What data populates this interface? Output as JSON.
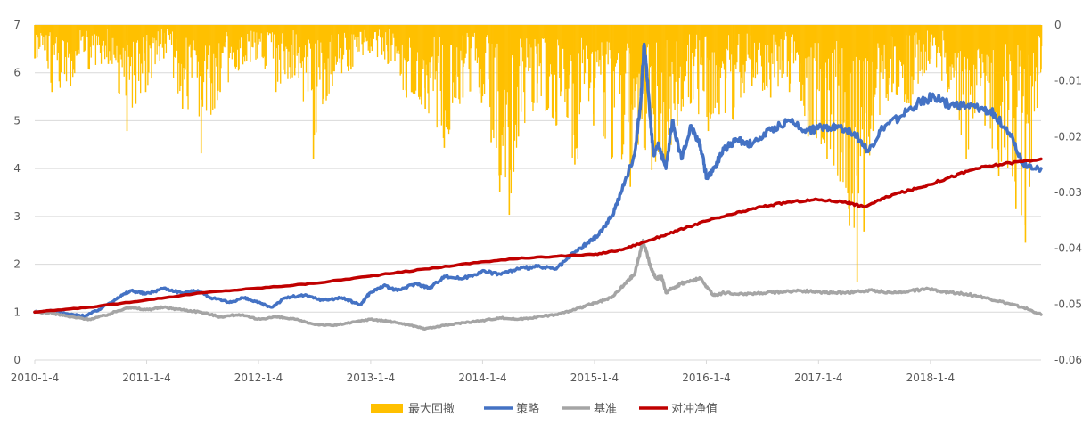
{
  "chart_data": {
    "type": "line",
    "title": "",
    "xlabel": "",
    "ylabel": "",
    "y2label": "",
    "x_ticks": [
      "2010-1-4",
      "2011-1-4",
      "2012-1-4",
      "2013-1-4",
      "2014-1-4",
      "2015-1-4",
      "2016-1-4",
      "2017-1-4",
      "2018-1-4"
    ],
    "xlim": [
      "2010-01-04",
      "2018-12-31"
    ],
    "ylim": [
      0,
      7
    ],
    "y_ticks": [
      "0",
      "1",
      "2",
      "3",
      "4",
      "5",
      "6",
      "7"
    ],
    "y2lim": [
      -0.06,
      0
    ],
    "y2_ticks": [
      "0",
      "-0.01",
      "-0.02",
      "-0.03",
      "-0.04",
      "-0.05",
      "-0.06"
    ],
    "grid": true,
    "legend_position": "bottom",
    "legend": [
      "最大回撤",
      "策略",
      "基准",
      "对冲净值"
    ],
    "series": [
      {
        "name": "最大回撤",
        "type": "bar",
        "axis": "right",
        "color": "#FFC000",
        "x": [
          "2010-01-04",
          "2010-03-01",
          "2010-05-01",
          "2010-07-01",
          "2010-09-01",
          "2010-11-01",
          "2011-01-01",
          "2011-03-01",
          "2011-05-01",
          "2011-07-01",
          "2011-09-01",
          "2011-11-01",
          "2012-01-01",
          "2012-03-01",
          "2012-05-01",
          "2012-07-01",
          "2012-09-01",
          "2012-11-01",
          "2013-01-01",
          "2013-03-01",
          "2013-05-01",
          "2013-07-01",
          "2013-09-01",
          "2013-11-01",
          "2014-01-01",
          "2014-02-01",
          "2014-03-01",
          "2014-04-01",
          "2014-05-01",
          "2014-07-01",
          "2014-09-01",
          "2014-11-01",
          "2015-01-01",
          "2015-03-01",
          "2015-05-01",
          "2015-06-15",
          "2015-07-10",
          "2015-08-25",
          "2015-10-01",
          "2015-11-15",
          "2016-01-10",
          "2016-02-15",
          "2016-04-01",
          "2016-06-01",
          "2016-08-01",
          "2016-10-01",
          "2016-12-01",
          "2017-02-01",
          "2017-03-15",
          "2017-04-15",
          "2017-05-10",
          "2017-06-01",
          "2017-07-01",
          "2017-09-01",
          "2017-11-01",
          "2018-01-01",
          "2018-03-01",
          "2018-05-01",
          "2018-07-01",
          "2018-08-15",
          "2018-10-10",
          "2018-11-10",
          "2018-12-31"
        ],
        "values": [
          -0.006,
          -0.012,
          -0.011,
          -0.008,
          -0.007,
          -0.019,
          -0.012,
          -0.006,
          -0.015,
          -0.023,
          -0.012,
          -0.008,
          -0.006,
          -0.012,
          -0.009,
          -0.024,
          -0.011,
          -0.008,
          -0.005,
          -0.007,
          -0.013,
          -0.015,
          -0.022,
          -0.013,
          -0.014,
          -0.021,
          -0.03,
          -0.034,
          -0.02,
          -0.014,
          -0.018,
          -0.025,
          -0.018,
          -0.024,
          -0.029,
          -0.022,
          -0.026,
          -0.025,
          -0.018,
          -0.014,
          -0.019,
          -0.016,
          -0.017,
          -0.011,
          -0.013,
          -0.012,
          -0.02,
          -0.024,
          -0.028,
          -0.036,
          -0.046,
          -0.037,
          -0.019,
          -0.012,
          -0.015,
          -0.007,
          -0.012,
          -0.024,
          -0.018,
          -0.027,
          -0.033,
          -0.039,
          -0.008
        ]
      },
      {
        "name": "策略",
        "type": "line",
        "axis": "left",
        "color": "#4472C4",
        "x": [
          "2010-01-04",
          "2010-03-01",
          "2010-05-01",
          "2010-06-15",
          "2010-08-01",
          "2010-10-01",
          "2010-11-15",
          "2011-01-01",
          "2011-03-01",
          "2011-05-01",
          "2011-06-20",
          "2011-08-01",
          "2011-10-01",
          "2011-11-15",
          "2012-01-01",
          "2012-02-15",
          "2012-04-01",
          "2012-06-01",
          "2012-08-01",
          "2012-10-01",
          "2012-12-01",
          "2013-01-01",
          "2013-02-15",
          "2013-04-01",
          "2013-06-01",
          "2013-07-15",
          "2013-09-01",
          "2013-11-01",
          "2014-01-01",
          "2014-03-01",
          "2014-05-01",
          "2014-07-01",
          "2014-09-01",
          "2014-11-01",
          "2014-12-15",
          "2015-01-15",
          "2015-03-01",
          "2015-04-01",
          "2015-05-15",
          "2015-06-05",
          "2015-06-15",
          "2015-07-01",
          "2015-07-15",
          "2015-08-01",
          "2015-08-25",
          "2015-09-15",
          "2015-10-15",
          "2015-11-15",
          "2015-12-15",
          "2016-01-05",
          "2016-01-28",
          "2016-03-01",
          "2016-04-15",
          "2016-06-01",
          "2016-08-01",
          "2016-10-01",
          "2016-12-01",
          "2017-01-15",
          "2017-03-01",
          "2017-05-01",
          "2017-06-15",
          "2017-08-01",
          "2017-10-01",
          "2017-12-01",
          "2018-01-15",
          "2018-03-01",
          "2018-05-01",
          "2018-06-15",
          "2018-08-01",
          "2018-10-01",
          "2018-11-01",
          "2018-12-31"
        ],
        "values": [
          1.0,
          1.02,
          0.95,
          0.92,
          1.05,
          1.3,
          1.45,
          1.38,
          1.5,
          1.4,
          1.45,
          1.3,
          1.2,
          1.3,
          1.2,
          1.1,
          1.3,
          1.35,
          1.25,
          1.3,
          1.15,
          1.4,
          1.55,
          1.45,
          1.6,
          1.5,
          1.75,
          1.7,
          1.85,
          1.8,
          1.9,
          1.95,
          1.9,
          2.25,
          2.45,
          2.6,
          3.0,
          3.5,
          4.3,
          5.5,
          6.6,
          5.4,
          4.3,
          4.5,
          4.0,
          5.0,
          4.2,
          4.9,
          4.5,
          3.8,
          4.0,
          4.4,
          4.6,
          4.5,
          4.8,
          5.0,
          4.8,
          4.85,
          4.9,
          4.75,
          4.35,
          4.85,
          5.1,
          5.4,
          5.5,
          5.35,
          5.3,
          5.25,
          5.15,
          4.6,
          4.1,
          4.0
        ]
      },
      {
        "name": "基准",
        "type": "line",
        "axis": "left",
        "color": "#A5A5A5",
        "x": [
          "2010-01-04",
          "2010-03-01",
          "2010-05-01",
          "2010-07-01",
          "2010-09-01",
          "2010-11-01",
          "2011-01-01",
          "2011-03-01",
          "2011-05-01",
          "2011-07-01",
          "2011-09-01",
          "2011-11-01",
          "2012-01-01",
          "2012-03-01",
          "2012-05-01",
          "2012-07-01",
          "2012-09-01",
          "2012-11-01",
          "2013-01-01",
          "2013-02-15",
          "2013-04-01",
          "2013-06-01",
          "2013-07-01",
          "2013-09-01",
          "2013-11-01",
          "2014-01-01",
          "2014-03-01",
          "2014-05-01",
          "2014-07-01",
          "2014-09-01",
          "2014-11-01",
          "2014-12-15",
          "2015-01-15",
          "2015-03-01",
          "2015-04-15",
          "2015-05-15",
          "2015-06-12",
          "2015-07-08",
          "2015-07-25",
          "2015-08-10",
          "2015-08-26",
          "2015-09-15",
          "2015-10-15",
          "2015-11-15",
          "2015-12-15",
          "2016-01-28",
          "2016-03-01",
          "2016-05-01",
          "2016-07-01",
          "2016-09-01",
          "2016-11-01",
          "2017-01-01",
          "2017-03-01",
          "2017-05-01",
          "2017-07-01",
          "2017-09-01",
          "2017-11-01",
          "2018-01-01",
          "2018-03-01",
          "2018-05-01",
          "2018-07-01",
          "2018-09-01",
          "2018-11-01",
          "2018-12-31"
        ],
        "values": [
          1.0,
          0.98,
          0.9,
          0.85,
          0.95,
          1.1,
          1.05,
          1.1,
          1.05,
          1.0,
          0.9,
          0.95,
          0.85,
          0.9,
          0.85,
          0.75,
          0.72,
          0.78,
          0.85,
          0.82,
          0.78,
          0.7,
          0.65,
          0.72,
          0.78,
          0.82,
          0.88,
          0.85,
          0.9,
          0.95,
          1.05,
          1.15,
          1.2,
          1.3,
          1.6,
          1.8,
          2.5,
          1.9,
          1.7,
          1.75,
          1.4,
          1.5,
          1.6,
          1.65,
          1.7,
          1.35,
          1.4,
          1.38,
          1.4,
          1.42,
          1.45,
          1.42,
          1.4,
          1.42,
          1.45,
          1.4,
          1.45,
          1.48,
          1.42,
          1.38,
          1.3,
          1.2,
          1.1,
          0.95
        ]
      },
      {
        "name": "对冲净值",
        "type": "line",
        "axis": "left",
        "color": "#C00000",
        "x": [
          "2010-01-04",
          "2010-07-01",
          "2011-01-01",
          "2011-07-01",
          "2012-01-01",
          "2012-07-01",
          "2013-01-01",
          "2013-07-01",
          "2014-01-01",
          "2014-07-01",
          "2015-01-01",
          "2015-04-01",
          "2015-07-01",
          "2015-10-01",
          "2016-01-01",
          "2016-04-01",
          "2016-07-01",
          "2016-10-01",
          "2017-01-01",
          "2017-04-01",
          "2017-06-01",
          "2017-09-01",
          "2017-12-01",
          "2018-03-01",
          "2018-06-01",
          "2018-09-01",
          "2018-12-31"
        ],
        "values": [
          1.0,
          1.1,
          1.25,
          1.4,
          1.5,
          1.6,
          1.75,
          1.9,
          2.05,
          2.15,
          2.2,
          2.3,
          2.5,
          2.7,
          2.9,
          3.05,
          3.2,
          3.3,
          3.35,
          3.3,
          3.2,
          3.45,
          3.6,
          3.8,
          4.0,
          4.1,
          4.2
        ]
      }
    ]
  }
}
